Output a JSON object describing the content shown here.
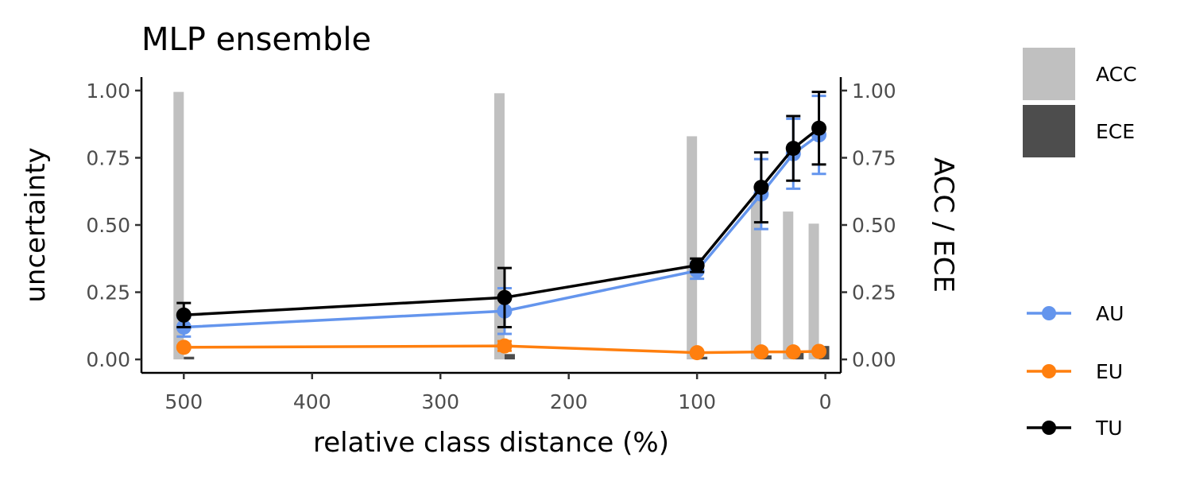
{
  "chart_data": {
    "type": "line",
    "title": "MLP ensemble",
    "xlabel": "relative class distance (%)",
    "ylabel": "uncertainty",
    "y2label": "ACC / ECE",
    "x_reversed": true,
    "xlim": [
      533,
      -12
    ],
    "ylim": [
      -0.05,
      1.05
    ],
    "xticks": [
      500,
      400,
      300,
      200,
      100,
      0
    ],
    "yticks": [
      0.0,
      0.25,
      0.5,
      0.75,
      1.0
    ],
    "ytick_labels": [
      "0.00",
      "0.25",
      "0.50",
      "0.75",
      "1.00"
    ],
    "x": [
      500,
      250,
      100,
      50,
      25,
      5
    ],
    "bars": [
      {
        "name": "ACC",
        "color": "#c0c0c0",
        "values": [
          0.995,
          0.99,
          0.83,
          0.6,
          0.55,
          0.505
        ]
      },
      {
        "name": "ECE",
        "color": "#4d4d4d",
        "values": [
          0.01,
          0.02,
          0.01,
          0.015,
          0.03,
          0.05
        ]
      }
    ],
    "series": [
      {
        "name": "AU",
        "color": "#6495ed",
        "values": [
          0.12,
          0.18,
          0.33,
          0.615,
          0.765,
          0.835
        ],
        "err": [
          0.035,
          0.085,
          0.03,
          0.13,
          0.13,
          0.145
        ]
      },
      {
        "name": "EU",
        "color": "#ff7f0e",
        "values": [
          0.045,
          0.05,
          0.025,
          0.028,
          0.028,
          0.03
        ],
        "err": [
          0.006,
          0.018,
          0.004,
          0.004,
          0.004,
          0.004
        ]
      },
      {
        "name": "TU",
        "color": "#000000",
        "values": [
          0.165,
          0.23,
          0.35,
          0.64,
          0.785,
          0.86
        ],
        "err": [
          0.045,
          0.11,
          0.025,
          0.13,
          0.12,
          0.135
        ]
      }
    ],
    "legend_position": "right",
    "grid": false
  }
}
